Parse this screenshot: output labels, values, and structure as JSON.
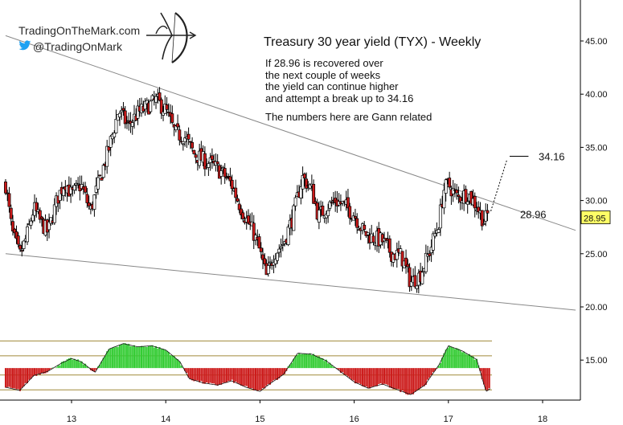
{
  "brand": {
    "site": "TradingOnTheMark.com",
    "twitter": "@TradingOnMark",
    "logo_icon": "archer-bow-icon",
    "twitter_icon": "twitter-bird-icon",
    "twitter_color": "#1da1f2"
  },
  "header": {
    "title": "Treasury 30 year yield (TYX) - Weekly",
    "note_lines": [
      "If 28.96 is recovered over",
      "the next couple of weeks",
      "the yield can continue higher",
      "and attempt a break up to 34.16"
    ],
    "gann_note": "The numbers here are Gann related"
  },
  "annotations": {
    "target_label": "34.16",
    "target_value": 34.16,
    "pivot_label": "28.96",
    "pivot_value": 28.96,
    "last_price_label": "28.95",
    "last_price_value": 28.95,
    "last_price_bg": "#ffff66"
  },
  "chart_data": {
    "type": "candlestick",
    "title": "Treasury 30 year yield (TYX) - Weekly",
    "x_axis_ticks": [
      "13",
      "14",
      "15",
      "16",
      "17",
      "18"
    ],
    "y_axis_ticks": [
      "45.00",
      "40.00",
      "35.00",
      "30.00",
      "25.00",
      "20.00",
      "15.00"
    ],
    "x_range": [
      12.3,
      18.4
    ],
    "y_range": [
      11.5,
      49
    ],
    "colors": {
      "up_candle": "#ffffff",
      "down_candle": "#cc1a1a",
      "osc_up": "#33cc33",
      "osc_down": "#cc1a1a",
      "trendline": "#888888",
      "osc_band": "#a08a3a"
    },
    "trendlines": [
      {
        "name": "upper",
        "from": [
          12.3,
          45.5
        ],
        "to": [
          18.35,
          27.2
        ]
      },
      {
        "name": "lower",
        "from": [
          12.3,
          25.0
        ],
        "to": [
          18.35,
          19.7
        ]
      }
    ],
    "projection": {
      "from": [
        17.45,
        29.0
      ],
      "to": [
        17.62,
        33.8
      ]
    },
    "target_line": {
      "value": 34.16,
      "from": 17.65,
      "to": 17.85
    },
    "price_anchors": [
      [
        12.3,
        31.5
      ],
      [
        12.37,
        27.0
      ],
      [
        12.45,
        24.8
      ],
      [
        12.52,
        26.5
      ],
      [
        12.6,
        29.3
      ],
      [
        12.67,
        28.0
      ],
      [
        12.75,
        27.0
      ],
      [
        12.85,
        30.2
      ],
      [
        12.93,
        31.8
      ],
      [
        13.0,
        30.5
      ],
      [
        13.1,
        31.5
      ],
      [
        13.2,
        29.0
      ],
      [
        13.3,
        32.0
      ],
      [
        13.4,
        35.0
      ],
      [
        13.5,
        38.5
      ],
      [
        13.6,
        37.0
      ],
      [
        13.7,
        38.2
      ],
      [
        13.8,
        38.8
      ],
      [
        13.9,
        39.4
      ],
      [
        14.0,
        38.5
      ],
      [
        14.1,
        36.3
      ],
      [
        14.2,
        36.0
      ],
      [
        14.3,
        34.4
      ],
      [
        14.4,
        33.8
      ],
      [
        14.5,
        33.3
      ],
      [
        14.6,
        32.6
      ],
      [
        14.7,
        31.5
      ],
      [
        14.78,
        29.7
      ],
      [
        14.85,
        28.3
      ],
      [
        14.93,
        27.0
      ],
      [
        15.0,
        25.2
      ],
      [
        15.07,
        22.8
      ],
      [
        15.15,
        25.0
      ],
      [
        15.25,
        26.0
      ],
      [
        15.35,
        28.5
      ],
      [
        15.45,
        32.2
      ],
      [
        15.55,
        31.0
      ],
      [
        15.62,
        28.5
      ],
      [
        15.7,
        29.3
      ],
      [
        15.8,
        30.0
      ],
      [
        15.9,
        29.5
      ],
      [
        16.0,
        28.7
      ],
      [
        16.1,
        27.0
      ],
      [
        16.2,
        26.5
      ],
      [
        16.3,
        26.2
      ],
      [
        16.4,
        25.0
      ],
      [
        16.5,
        24.8
      ],
      [
        16.6,
        22.3
      ],
      [
        16.7,
        23.0
      ],
      [
        16.8,
        25.2
      ],
      [
        16.9,
        28.0
      ],
      [
        16.95,
        31.0
      ],
      [
        17.0,
        31.5
      ],
      [
        17.1,
        30.2
      ],
      [
        17.2,
        30.7
      ],
      [
        17.3,
        29.5
      ],
      [
        17.38,
        28.0
      ],
      [
        17.43,
        28.95
      ]
    ],
    "oscillator": {
      "panel_y_range": [
        11.6,
        17.0
      ],
      "bands": [
        16.8,
        15.4,
        13.6,
        12.2
      ],
      "zero": 14.25,
      "anchors": [
        [
          12.3,
          -1.8
        ],
        [
          12.45,
          -2.1
        ],
        [
          12.6,
          -0.7
        ],
        [
          12.75,
          -0.3
        ],
        [
          12.9,
          0.5
        ],
        [
          13.0,
          0.9
        ],
        [
          13.1,
          0.6
        ],
        [
          13.25,
          -0.4
        ],
        [
          13.4,
          1.8
        ],
        [
          13.55,
          2.3
        ],
        [
          13.7,
          2.0
        ],
        [
          13.85,
          2.1
        ],
        [
          14.0,
          1.7
        ],
        [
          14.15,
          0.6
        ],
        [
          14.25,
          -1.0
        ],
        [
          14.4,
          -1.4
        ],
        [
          14.55,
          -1.6
        ],
        [
          14.7,
          -1.2
        ],
        [
          14.85,
          -1.8
        ],
        [
          15.0,
          -2.2
        ],
        [
          15.1,
          -1.5
        ],
        [
          15.25,
          -0.6
        ],
        [
          15.4,
          1.4
        ],
        [
          15.55,
          1.3
        ],
        [
          15.7,
          0.7
        ],
        [
          15.85,
          -0.3
        ],
        [
          16.0,
          -1.3
        ],
        [
          16.15,
          -1.9
        ],
        [
          16.3,
          -1.5
        ],
        [
          16.45,
          -2.0
        ],
        [
          16.6,
          -2.5
        ],
        [
          16.75,
          -1.6
        ],
        [
          16.9,
          0.3
        ],
        [
          17.0,
          2.1
        ],
        [
          17.15,
          1.6
        ],
        [
          17.3,
          0.8
        ],
        [
          17.4,
          -2.2
        ],
        [
          17.45,
          -1.9
        ]
      ]
    }
  }
}
